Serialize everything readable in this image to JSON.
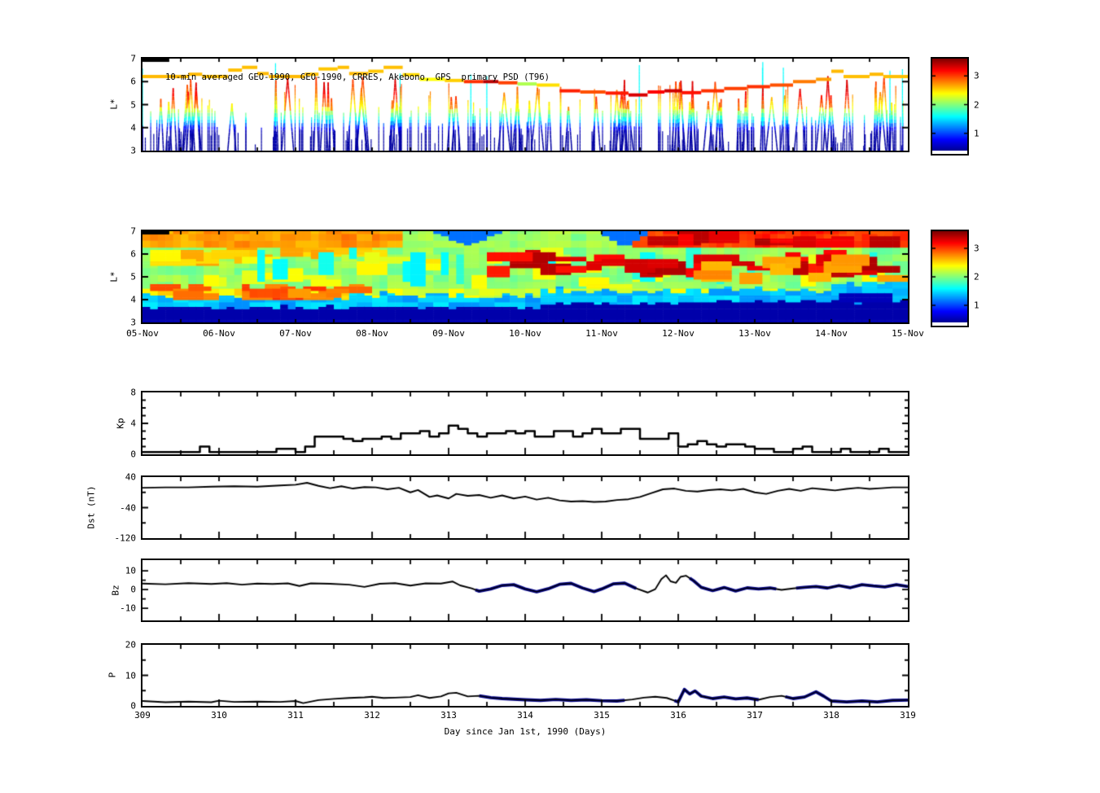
{
  "figure": {
    "background": "#ffffff",
    "colormap": [
      "#00008F",
      "#0000FF",
      "#00FFFF",
      "#FFFF00",
      "#FF0000",
      "#800000"
    ],
    "value_range": [
      0.4,
      3.6
    ],
    "colorbars": [
      {
        "ticks": [
          1,
          2,
          3
        ]
      },
      {
        "ticks": [
          1,
          2,
          3
        ]
      }
    ]
  },
  "chart_data": [
    {
      "type": "scatter",
      "title": "10-min averaged GEO-1990, GEO-1990, CRRES, Akebono, GPS  primary PSD (T96)",
      "ylabel": "L*",
      "x_range": [
        309,
        319
      ],
      "y_range": [
        3,
        7
      ],
      "y_ticks": [
        3,
        4,
        5,
        6,
        7
      ],
      "black_segment": [
        309.0,
        309.35,
        6.93
      ],
      "band_segments": [
        [
          309.0,
          309.6,
          6.22,
          2.62
        ],
        [
          309.6,
          309.78,
          6.32,
          2.62
        ],
        [
          309.78,
          310.12,
          6.22,
          2.6
        ],
        [
          310.12,
          310.3,
          6.5,
          2.6
        ],
        [
          310.3,
          310.5,
          6.62,
          2.6
        ],
        [
          310.5,
          310.65,
          6.35,
          2.62
        ],
        [
          310.65,
          311.12,
          6.22,
          2.62
        ],
        [
          311.12,
          311.3,
          6.32,
          2.6
        ],
        [
          311.3,
          311.55,
          6.55,
          2.58
        ],
        [
          311.55,
          311.7,
          6.62,
          2.6
        ],
        [
          311.7,
          311.95,
          6.35,
          2.62
        ],
        [
          311.95,
          312.15,
          6.45,
          2.58
        ],
        [
          312.15,
          312.4,
          6.62,
          2.6
        ],
        [
          312.4,
          312.62,
          6.3,
          2.52
        ],
        [
          312.62,
          312.95,
          6.1,
          2.4
        ],
        [
          312.95,
          313.2,
          6.05,
          2.55
        ],
        [
          313.2,
          313.45,
          6.0,
          3.05
        ],
        [
          313.45,
          313.65,
          6.0,
          3.42
        ],
        [
          313.65,
          313.9,
          5.95,
          3.0
        ],
        [
          313.9,
          314.15,
          5.9,
          2.15
        ],
        [
          314.15,
          314.45,
          5.85,
          2.5
        ],
        [
          314.45,
          314.72,
          5.6,
          3.1
        ],
        [
          314.72,
          315.05,
          5.55,
          2.95
        ],
        [
          315.05,
          315.35,
          5.5,
          3.12
        ],
        [
          315.35,
          315.6,
          5.42,
          3.32
        ],
        [
          315.6,
          315.82,
          5.55,
          3.2
        ],
        [
          315.82,
          316.05,
          5.6,
          3.35
        ],
        [
          316.05,
          316.3,
          5.52,
          3.15
        ],
        [
          316.3,
          316.6,
          5.6,
          3.05
        ],
        [
          316.6,
          316.9,
          5.7,
          3.0
        ],
        [
          316.9,
          317.2,
          5.78,
          3.05
        ],
        [
          317.2,
          317.5,
          5.85,
          2.95
        ],
        [
          317.5,
          317.8,
          6.0,
          2.82
        ],
        [
          317.8,
          318.0,
          6.1,
          2.7
        ],
        [
          318.0,
          318.16,
          6.45,
          2.62
        ],
        [
          318.16,
          318.5,
          6.22,
          2.6
        ],
        [
          318.5,
          318.68,
          6.32,
          2.62
        ],
        [
          318.68,
          319.0,
          6.22,
          2.6
        ]
      ],
      "spike_color_map": [
        [
          3,
          0.45
        ],
        [
          3.8,
          0.5
        ],
        [
          4.05,
          0.95
        ],
        [
          4.3,
          1.5
        ],
        [
          4.55,
          1.9
        ],
        [
          4.8,
          2.35
        ],
        [
          5.1,
          2.5
        ],
        [
          5.4,
          2.75
        ],
        [
          5.9,
          3.0
        ],
        [
          6.5,
          3.05
        ]
      ],
      "spikes": {
        "seed": 42,
        "thin_count": 240,
        "v_count": 60,
        "tall_cyan_chance": 0.06,
        "warm_chance": 0.5
      }
    },
    {
      "type": "heatmap",
      "ylabel": "L*",
      "x_range": [
        309,
        319
      ],
      "y_range": [
        3,
        7
      ],
      "y_ticks": [
        3,
        4,
        5,
        6,
        7
      ],
      "x_tick_labels": [
        "05-Nov",
        "06-Nov",
        "07-Nov",
        "08-Nov",
        "09-Nov",
        "10-Nov",
        "11-Nov",
        "12-Nov",
        "13-Nov",
        "14-Nov",
        "15-Nov"
      ],
      "seed": 7,
      "black_segment": [
        309.0,
        309.35,
        6.93
      ],
      "structure": {
        "lower_yellow": {
          "l_top": 4.55,
          "value_early": 2.42,
          "value_late": 2.28,
          "split_day": 311.8
        },
        "mid_green": {
          "l_top": 6.35,
          "value": 2.05
        },
        "top_band_phases": [
          [
            309,
            312.4,
            2.7
          ],
          [
            312.4,
            315.4,
            2.1
          ],
          [
            315.4,
            319,
            3.05
          ]
        ],
        "blue_wedges": [
          [
            313.25,
            0.45
          ],
          [
            315.3,
            0.35
          ]
        ],
        "dark_patch": {
          "day": [
            318.15,
            318.8
          ],
          "l": [
            3.95,
            4.25
          ],
          "value": 0.55
        },
        "blob_sets": [
          {
            "n": 26,
            "day": [
              309,
              312.2
            ],
            "l": [
              3.95,
              4.75
            ],
            "w": [
              0.15,
              0.5
            ],
            "h": [
              0.15,
              0.45
            ],
            "v": [
              2.7,
              3.05
            ]
          },
          {
            "n": 20,
            "day": [
              309,
              313.2
            ],
            "l": [
              5.5,
              6.35
            ],
            "w": [
              0.2,
              0.6
            ],
            "h": [
              0.2,
              0.5
            ],
            "v": [
              2.45,
              2.7
            ]
          },
          {
            "n": 34,
            "day": [
              309,
              319
            ],
            "l": [
              4.4,
              6.3
            ],
            "w": [
              0.15,
              0.5
            ],
            "h": [
              0.2,
              0.6
            ],
            "v": [
              2.3,
              2.45
            ]
          },
          {
            "n": 18,
            "day": [
              309,
              319
            ],
            "l": [
              4.6,
              6.3
            ],
            "w": [
              0.08,
              0.2
            ],
            "h": [
              0.5,
              1.6
            ],
            "v": [
              1.55,
              1.75
            ]
          },
          {
            "n": 40,
            "day": [
              313.4,
              319
            ],
            "l": [
              5.0,
              6.25
            ],
            "w": [
              0.15,
              0.55
            ],
            "h": [
              0.2,
              0.6
            ],
            "v": [
              3.1,
              3.45
            ]
          },
          {
            "n": 16,
            "day": [
              315.5,
              319
            ],
            "l": [
              6.3,
              7.0
            ],
            "w": [
              0.2,
              0.6
            ],
            "h": [
              0.2,
              0.5
            ],
            "v": [
              3.2,
              3.45
            ]
          },
          {
            "n": 12,
            "day": [
              316.2,
              319
            ],
            "l": [
              4.6,
              6.0
            ],
            "w": [
              0.2,
              0.5
            ],
            "h": [
              0.3,
              0.7
            ],
            "v": [
              2.6,
              2.85
            ]
          }
        ]
      }
    },
    {
      "type": "line",
      "ylabel": "Kp",
      "y_range": [
        0,
        8
      ],
      "y_ticks": [
        0,
        4,
        8
      ],
      "y_minor": [
        1,
        2,
        3,
        5,
        6,
        7
      ],
      "step": {
        "x0": 309,
        "dx": 0.125,
        "values": [
          0.3,
          0.3,
          0.3,
          0.3,
          0.3,
          0.3,
          1.0,
          0.3,
          0.3,
          0.3,
          0.3,
          0.3,
          0.3,
          0.3,
          0.7,
          0.7,
          0.3,
          1.0,
          2.3,
          2.3,
          2.3,
          2.0,
          1.7,
          2.0,
          2.0,
          2.3,
          2.0,
          2.7,
          2.7,
          3.0,
          2.3,
          2.7,
          3.7,
          3.3,
          2.7,
          2.3,
          2.7,
          2.7,
          3.0,
          2.7,
          3.0,
          2.3,
          2.3,
          3.0,
          3.0,
          2.3,
          2.7,
          3.3,
          2.7,
          2.7,
          3.3,
          3.3,
          2.0,
          2.0,
          2.0,
          2.7,
          1.0,
          1.3,
          1.7,
          1.3,
          1.0,
          1.3,
          1.3,
          1.0,
          0.7,
          0.7,
          0.3,
          0.3,
          0.7,
          1.0,
          0.3,
          0.3,
          0.3,
          0.7,
          0.3,
          0.3,
          0.3,
          0.7,
          0.3,
          0.3
        ]
      }
    },
    {
      "type": "line",
      "ylabel": "Dst (nT)",
      "y_range": [
        -120,
        40
      ],
      "y_ticks": [
        40,
        -40,
        -120
      ],
      "y_minor": [
        0,
        -80
      ],
      "x": [
        309.0,
        309.3,
        309.6,
        309.9,
        310.2,
        310.5,
        310.8,
        311.0,
        311.15,
        311.3,
        311.45,
        311.6,
        311.75,
        311.9,
        312.05,
        312.2,
        312.35,
        312.5,
        312.6,
        312.75,
        312.85,
        313.0,
        313.1,
        313.25,
        313.4,
        313.55,
        313.7,
        313.85,
        314.0,
        314.15,
        314.3,
        314.45,
        314.6,
        314.75,
        314.9,
        315.05,
        315.2,
        315.35,
        315.5,
        315.65,
        315.8,
        315.95,
        316.1,
        316.25,
        316.4,
        316.55,
        316.7,
        316.85,
        317.0,
        317.15,
        317.3,
        317.45,
        317.6,
        317.75,
        317.9,
        318.05,
        318.2,
        318.35,
        318.5,
        318.65,
        318.8,
        319.0
      ],
      "y": [
        12,
        13,
        13,
        15,
        16,
        15,
        18,
        20,
        25,
        17,
        11,
        16,
        10,
        14,
        13,
        8,
        12,
        0,
        6,
        -12,
        -8,
        -16,
        -4,
        -9,
        -7,
        -14,
        -8,
        -16,
        -11,
        -19,
        -14,
        -21,
        -24,
        -23,
        -25,
        -24,
        -20,
        -18,
        -12,
        -2,
        8,
        10,
        4,
        2,
        6,
        8,
        5,
        9,
        0,
        -4,
        4,
        9,
        4,
        11,
        8,
        5,
        9,
        12,
        9,
        11,
        13,
        13
      ]
    },
    {
      "type": "line",
      "ylabel": "Bz",
      "y_range": [
        -16.5,
        15.7
      ],
      "y_ticks": [
        10,
        0,
        -10
      ],
      "y_minor": [
        5,
        -5
      ],
      "x": [
        309.0,
        309.3,
        309.6,
        309.9,
        310.1,
        310.3,
        310.5,
        310.7,
        310.9,
        311.05,
        311.2,
        311.45,
        311.7,
        311.9,
        312.1,
        312.3,
        312.5,
        312.7,
        312.9,
        313.05,
        313.15,
        313.3,
        313.4,
        313.55,
        313.7,
        313.85,
        314.0,
        314.15,
        314.3,
        314.45,
        314.6,
        314.75,
        314.9,
        315.0,
        315.15,
        315.3,
        315.45,
        315.6,
        315.7,
        315.78,
        315.84,
        315.9,
        315.97,
        316.03,
        316.1,
        316.2,
        316.3,
        316.45,
        316.6,
        316.75,
        316.9,
        317.05,
        317.2,
        317.35,
        317.5,
        317.65,
        317.8,
        317.95,
        318.1,
        318.25,
        318.4,
        318.55,
        318.7,
        318.85,
        319.0
      ],
      "y": [
        3.2,
        2.8,
        3.4,
        3.0,
        3.4,
        2.6,
        3.2,
        3.0,
        3.3,
        1.9,
        3.3,
        3.1,
        2.6,
        1.4,
        3.1,
        3.4,
        2.1,
        3.3,
        3.2,
        4.3,
        2.2,
        0.6,
        -0.9,
        0.3,
        2.2,
        2.6,
        0.3,
        -1.2,
        0.4,
        2.8,
        3.3,
        0.8,
        -1.1,
        0.3,
        3.0,
        3.4,
        0.6,
        -1.6,
        0.2,
        5.6,
        7.6,
        4.4,
        3.6,
        6.8,
        7.4,
        4.7,
        1.2,
        -0.6,
        1.1,
        -0.8,
        0.9,
        0.3,
        0.8,
        -0.2,
        0.6,
        1.2,
        1.6,
        0.8,
        2.1,
        1.0,
        2.6,
        1.9,
        1.4,
        2.6,
        1.6
      ],
      "overlay": {
        "color": "#00008B",
        "segments": [
          [
            313.35,
            315.45
          ],
          [
            316.15,
            317.28
          ],
          [
            317.54,
            319.0
          ]
        ]
      }
    },
    {
      "type": "line",
      "ylabel": "P",
      "y_range": [
        0,
        20
      ],
      "y_ticks": [
        0,
        10,
        20
      ],
      "y_minor": [
        5,
        15
      ],
      "x": [
        309.0,
        309.3,
        309.6,
        309.9,
        310.0,
        310.2,
        310.5,
        310.8,
        311.0,
        311.1,
        311.3,
        311.5,
        311.7,
        311.9,
        312.0,
        312.15,
        312.3,
        312.5,
        312.6,
        312.75,
        312.9,
        313.0,
        313.1,
        313.25,
        313.4,
        313.55,
        313.7,
        313.85,
        314.0,
        314.2,
        314.4,
        314.6,
        314.8,
        315.0,
        315.2,
        315.4,
        315.55,
        315.7,
        315.85,
        316.0,
        316.08,
        316.15,
        316.22,
        316.3,
        316.45,
        316.6,
        316.75,
        316.9,
        317.05,
        317.2,
        317.35,
        317.5,
        317.65,
        317.8,
        317.9,
        318.0,
        318.2,
        318.4,
        318.6,
        318.8,
        319.0
      ],
      "y": [
        1.6,
        1.2,
        1.4,
        1.2,
        1.7,
        1.3,
        1.4,
        1.3,
        1.6,
        0.9,
        1.9,
        2.3,
        2.6,
        2.8,
        3.0,
        2.6,
        2.7,
        2.9,
        3.5,
        2.6,
        3.1,
        4.1,
        4.3,
        3.1,
        3.3,
        2.7,
        2.4,
        2.2,
        2.0,
        1.8,
        2.1,
        1.8,
        2.0,
        1.7,
        1.6,
        2.1,
        2.7,
        3.0,
        2.6,
        1.3,
        5.4,
        3.9,
        4.9,
        3.2,
        2.4,
        2.9,
        2.3,
        2.6,
        2.0,
        2.9,
        3.3,
        2.4,
        2.9,
        4.6,
        3.2,
        1.6,
        1.3,
        1.6,
        1.3,
        1.8,
        1.9
      ],
      "overlay": {
        "color": "#00008B",
        "segments": [
          [
            313.4,
            315.3
          ],
          [
            315.95,
            317.05
          ],
          [
            317.4,
            319.0
          ]
        ]
      },
      "x_ticks": [
        309,
        310,
        311,
        312,
        313,
        314,
        315,
        316,
        317,
        318,
        319
      ],
      "xlabel": "Day since Jan 1st, 1990 (Days)"
    }
  ]
}
